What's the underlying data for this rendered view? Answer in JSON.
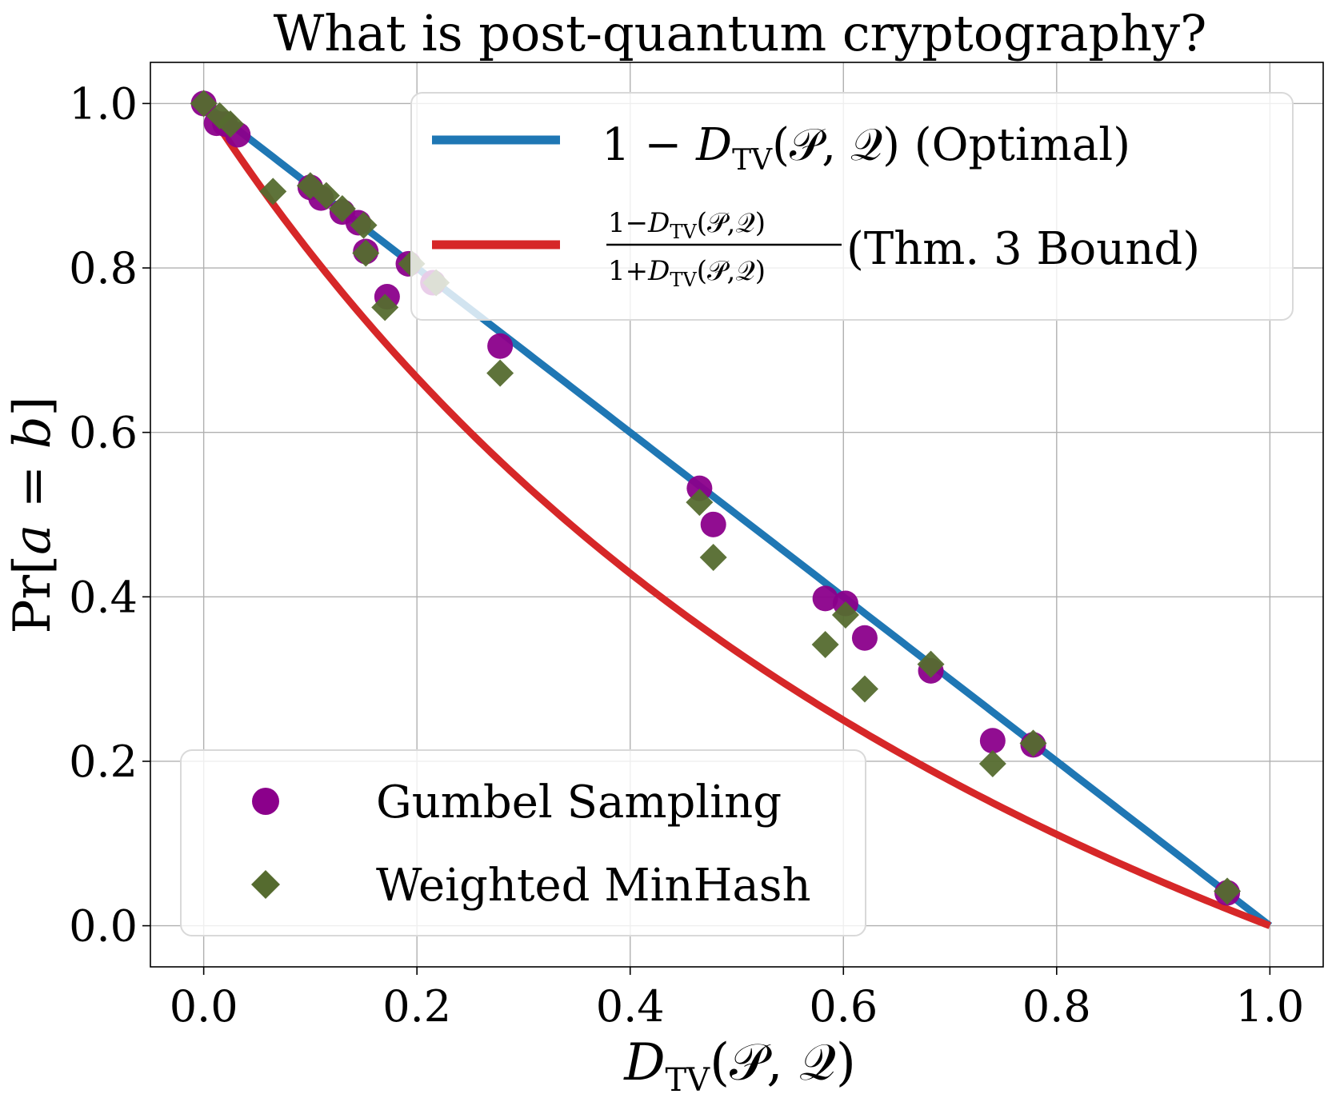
{
  "chart_data": {
    "type": "scatter",
    "title": "What is post-quantum cryptography?",
    "xlim": [
      -0.05,
      1.05
    ],
    "ylim": [
      -0.05,
      1.05
    ],
    "xticks": [
      "0.0",
      "0.2",
      "0.4",
      "0.6",
      "0.8",
      "1.0"
    ],
    "yticks": [
      "0.0",
      "0.2",
      "0.4",
      "0.6",
      "0.8",
      "1.0"
    ],
    "grid": true,
    "xlabel": {
      "math": "D",
      "sub": "TV",
      "args": "(𝒫, 𝒬)"
    },
    "ylabel": {
      "prefix": "Pr[",
      "math": "a",
      "mid": " = ",
      "math2": "b",
      "suffix": "]"
    },
    "lines": [
      {
        "name": "1 − D_TV(P,Q) (Optimal)",
        "color": "#1f77b4",
        "formula": "1-x"
      },
      {
        "name": "(1 − D_TV(P,Q)) / (1 + D_TV(P,Q)) (Thm. 3 Bound)",
        "color": "#d62728",
        "formula": "(1-x)/(1+x)"
      }
    ],
    "series": [
      {
        "name": "Gumbel Sampling",
        "marker": "circle",
        "color": "#8b008b",
        "points": [
          [
            0.0,
            1.0
          ],
          [
            0.012,
            0.976
          ],
          [
            0.02,
            0.975
          ],
          [
            0.032,
            0.962
          ],
          [
            0.1,
            0.898
          ],
          [
            0.11,
            0.885
          ],
          [
            0.13,
            0.868
          ],
          [
            0.145,
            0.855
          ],
          [
            0.152,
            0.82
          ],
          [
            0.172,
            0.765
          ],
          [
            0.192,
            0.805
          ],
          [
            0.215,
            0.782
          ],
          [
            0.278,
            0.705
          ],
          [
            0.465,
            0.532
          ],
          [
            0.478,
            0.488
          ],
          [
            0.583,
            0.398
          ],
          [
            0.602,
            0.392
          ],
          [
            0.62,
            0.35
          ],
          [
            0.682,
            0.31
          ],
          [
            0.74,
            0.225
          ],
          [
            0.778,
            0.22
          ],
          [
            0.96,
            0.04
          ]
        ]
      },
      {
        "name": "Weighted MinHash",
        "marker": "diamond",
        "color": "#556b2f",
        "points": [
          [
            0.0,
            1.0
          ],
          [
            0.015,
            0.985
          ],
          [
            0.025,
            0.975
          ],
          [
            0.065,
            0.893
          ],
          [
            0.1,
            0.9
          ],
          [
            0.115,
            0.888
          ],
          [
            0.13,
            0.872
          ],
          [
            0.15,
            0.852
          ],
          [
            0.152,
            0.818
          ],
          [
            0.17,
            0.752
          ],
          [
            0.195,
            0.805
          ],
          [
            0.218,
            0.782
          ],
          [
            0.278,
            0.672
          ],
          [
            0.465,
            0.515
          ],
          [
            0.478,
            0.448
          ],
          [
            0.583,
            0.342
          ],
          [
            0.602,
            0.378
          ],
          [
            0.62,
            0.288
          ],
          [
            0.682,
            0.318
          ],
          [
            0.74,
            0.197
          ],
          [
            0.778,
            0.222
          ],
          [
            0.96,
            0.042
          ]
        ]
      }
    ],
    "legend_lines": {
      "placement": "top-right",
      "items": [
        {
          "pre": "1 − ",
          "math": "D",
          "sub": "TV",
          "args": "(𝒫, 𝒬)",
          "post": " (Optimal)"
        },
        {
          "num_pre": "1−",
          "num_math": "D",
          "num_sub": "TV",
          "num_args": "(𝒫,𝒬)",
          "den_pre": "1+",
          "den_math": "D",
          "den_sub": "TV",
          "den_args": "(𝒫,𝒬)",
          "post": " (Thm. 3 Bound)"
        }
      ]
    },
    "legend_markers": {
      "placement": "bottom-left",
      "items": [
        "Gumbel Sampling",
        "Weighted MinHash"
      ]
    }
  }
}
